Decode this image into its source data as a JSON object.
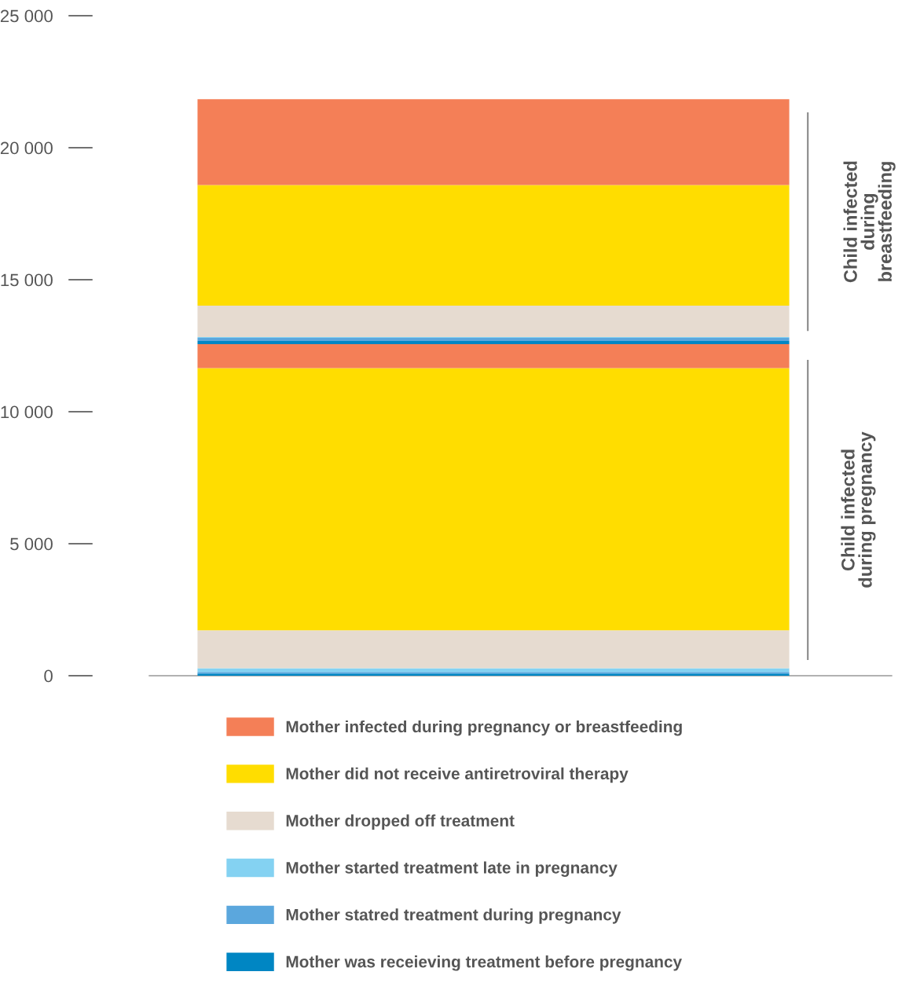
{
  "chart_data": {
    "type": "bar",
    "stacked": true,
    "categories": [
      null
    ],
    "series": [
      {
        "name": "Mother was receieving treatment before pregnancy",
        "color": "#0086c3",
        "values": [
          80
        ]
      },
      {
        "name": "Mother statred treatment during pregnancy",
        "color": "#5ba7dd",
        "values": [
          60
        ]
      },
      {
        "name": "Mother started treatment late in pregnancy",
        "color": "#84d2f2",
        "values": [
          140
        ]
      },
      {
        "name": "Mother dropped off treatment",
        "color": "#e6dbd0",
        "values": [
          1440
        ]
      },
      {
        "name": "Mother did not receive antiretroviral therapy",
        "color": "#ffdd00",
        "values": [
          9930
        ]
      },
      {
        "name": "Mother infected during pregnancy or breastfeeding",
        "color": "#f47f57",
        "values": [
          910
        ]
      },
      {
        "color": "#0086c3",
        "values": [
          120
        ]
      },
      {
        "color": "#5ba7dd",
        "values": [
          120
        ]
      },
      {
        "color": "#84d2f2",
        "values": [
          30
        ]
      },
      {
        "color": "#e6dbd0",
        "values": [
          1190
        ]
      },
      {
        "color": "#ffdd00",
        "values": [
          4570
        ]
      },
      {
        "color": "#f47f57",
        "values": [
          3250
        ]
      }
    ],
    "ylim": [
      0,
      25000
    ],
    "yticks": [
      0,
      {
        "value": 5000,
        "label": "5 000"
      },
      {
        "value": 10000,
        "label": "10 000"
      },
      {
        "value": 15000,
        "label": "15 000"
      },
      {
        "value": 20000,
        "label": "20 000"
      },
      {
        "value": 25000,
        "label": "25 000"
      }
    ],
    "tick_labels": "y",
    "grid": false,
    "legend": "bottom",
    "annotations": [
      "Child infected\nduring pregnancy",
      "Child infected\nduring\nbreastfeeding"
    ]
  }
}
